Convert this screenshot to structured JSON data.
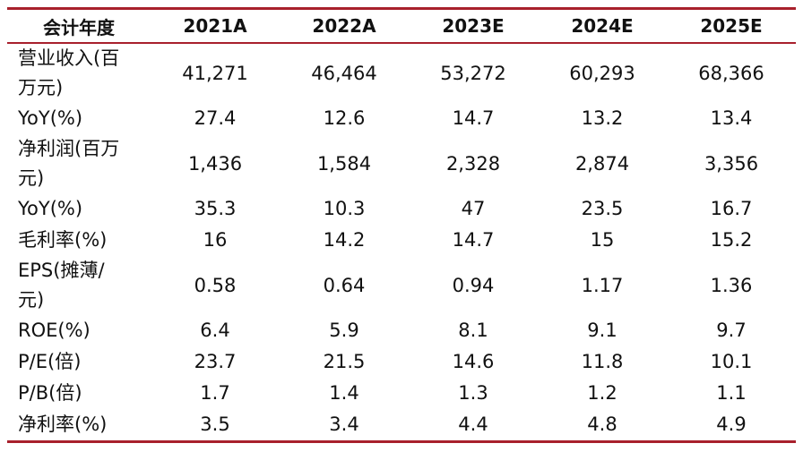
{
  "table": {
    "header": [
      "会计年度",
      "2021A",
      "2022A",
      "2023E",
      "2024E",
      "2025E"
    ],
    "rows": [
      [
        "营业收入(百\n万元)",
        "41,271",
        "46,464",
        "53,272",
        "60,293",
        "68,366"
      ],
      [
        "YoY(%)",
        "27.4",
        "12.6",
        "14.7",
        "13.2",
        "13.4"
      ],
      [
        "净利润(百万\n元)",
        "1,436",
        "1,584",
        "2,328",
        "2,874",
        "3,356"
      ],
      [
        "YoY(%)",
        "35.3",
        "10.3",
        "47",
        "23.5",
        "16.7"
      ],
      [
        "毛利率(%)",
        "16",
        "14.2",
        "14.7",
        "15",
        "15.2"
      ],
      [
        "EPS(摊薄/\n元)",
        "0.58",
        "0.64",
        "0.94",
        "1.17",
        "1.36"
      ],
      [
        "ROE(%)",
        "6.4",
        "5.9",
        "8.1",
        "9.1",
        "9.7"
      ],
      [
        "P/E(倍)",
        "23.7",
        "21.5",
        "14.6",
        "11.8",
        "10.1"
      ],
      [
        "P/B(倍)",
        "1.7",
        "1.4",
        "1.3",
        "1.2",
        "1.1"
      ],
      [
        "净利率(%)",
        "3.5",
        "3.4",
        "4.4",
        "4.8",
        "4.9"
      ]
    ]
  }
}
